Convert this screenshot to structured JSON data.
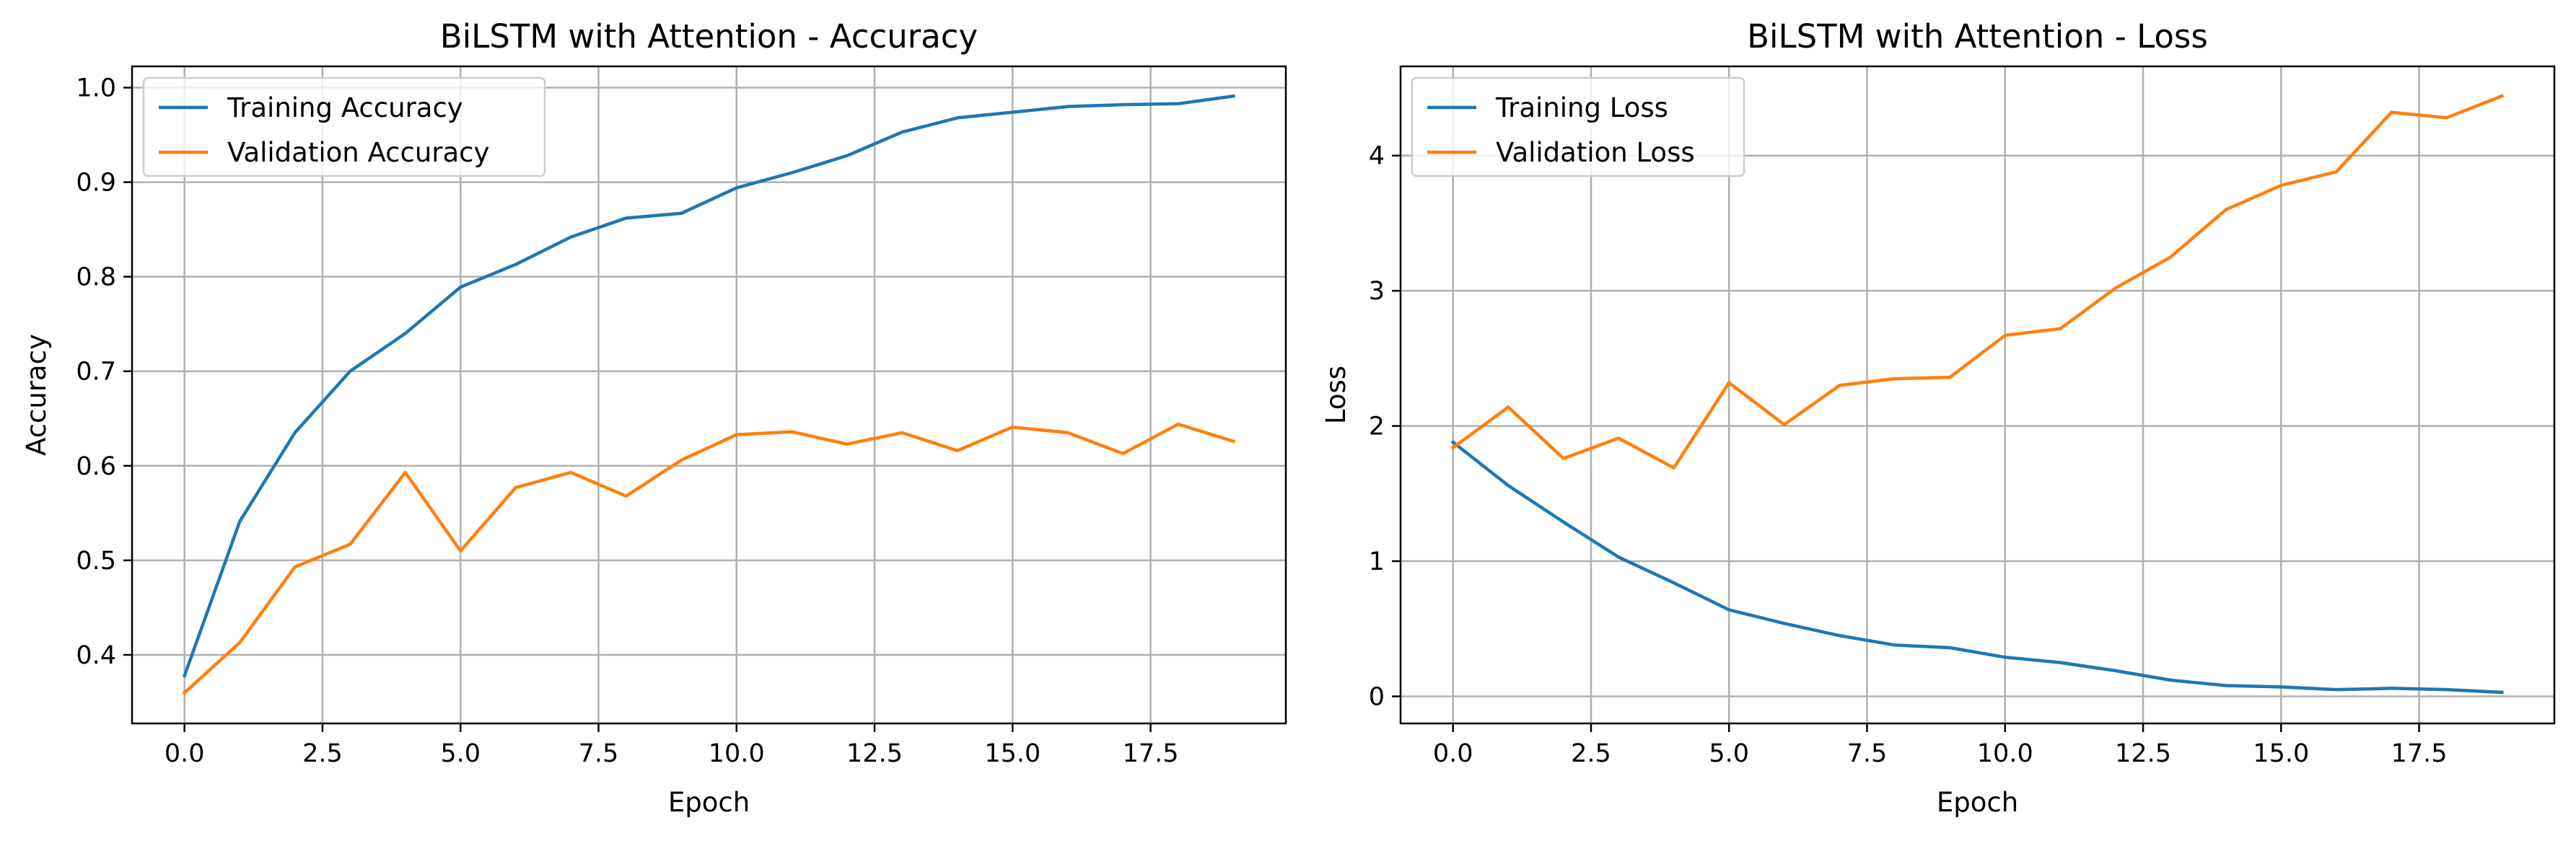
{
  "chart_data": [
    {
      "type": "line",
      "title": "BiLSTM with Attention - Accuracy",
      "xlabel": "Epoch",
      "ylabel": "Accuracy",
      "xlim": [
        -0.95,
        19.95
      ],
      "ylim": [
        0.3275,
        1.0225
      ],
      "xticks": [
        0,
        2.5,
        5,
        7.5,
        10,
        12.5,
        15,
        17.5
      ],
      "xtick_labels": [
        "0.0",
        "2.5",
        "5.0",
        "7.5",
        "10.0",
        "12.5",
        "15.0",
        "17.5"
      ],
      "yticks": [
        0.4,
        0.5,
        0.6,
        0.7,
        0.8,
        0.9,
        1.0
      ],
      "ytick_labels": [
        "0.4",
        "0.5",
        "0.6",
        "0.7",
        "0.8",
        "0.9",
        "1.0"
      ],
      "grid": true,
      "legend_position": "top-left",
      "x": [
        0,
        1,
        2,
        3,
        4,
        5,
        6,
        7,
        8,
        9,
        10,
        11,
        12,
        13,
        14,
        15,
        16,
        17,
        18,
        19
      ],
      "series": [
        {
          "name": "Training Accuracy",
          "color": "#1f77b4",
          "values": [
            0.378,
            0.541,
            0.635,
            0.7,
            0.74,
            0.789,
            0.813,
            0.842,
            0.862,
            0.867,
            0.894,
            0.91,
            0.928,
            0.953,
            0.968,
            0.974,
            0.98,
            0.982,
            0.983,
            0.991
          ]
        },
        {
          "name": "Validation Accuracy",
          "color": "#ff7f0e",
          "values": [
            0.36,
            0.413,
            0.493,
            0.517,
            0.593,
            0.51,
            0.577,
            0.593,
            0.568,
            0.606,
            0.633,
            0.636,
            0.623,
            0.635,
            0.616,
            0.641,
            0.635,
            0.613,
            0.644,
            0.626
          ]
        }
      ]
    },
    {
      "type": "line",
      "title": "BiLSTM with Attention - Loss",
      "xlabel": "Epoch",
      "ylabel": "Loss",
      "xlim": [
        -0.95,
        19.95
      ],
      "ylim": [
        -0.2,
        4.66
      ],
      "xticks": [
        0,
        2.5,
        5,
        7.5,
        10,
        12.5,
        15,
        17.5
      ],
      "xtick_labels": [
        "0.0",
        "2.5",
        "5.0",
        "7.5",
        "10.0",
        "12.5",
        "15.0",
        "17.5"
      ],
      "yticks": [
        0,
        1,
        2,
        3,
        4
      ],
      "ytick_labels": [
        "0",
        "1",
        "2",
        "3",
        "4"
      ],
      "grid": true,
      "legend_position": "top-left",
      "x": [
        0,
        1,
        2,
        3,
        4,
        5,
        6,
        7,
        8,
        9,
        10,
        11,
        12,
        13,
        14,
        15,
        16,
        17,
        18,
        19
      ],
      "series": [
        {
          "name": "Training Loss",
          "color": "#1f77b4",
          "values": [
            1.88,
            1.56,
            1.29,
            1.03,
            0.84,
            0.64,
            0.54,
            0.45,
            0.38,
            0.36,
            0.29,
            0.25,
            0.19,
            0.12,
            0.08,
            0.07,
            0.05,
            0.06,
            0.05,
            0.03
          ]
        },
        {
          "name": "Validation Loss",
          "color": "#ff7f0e",
          "values": [
            1.84,
            2.14,
            1.76,
            1.91,
            1.69,
            2.32,
            2.01,
            2.3,
            2.35,
            2.36,
            2.67,
            2.72,
            3.02,
            3.25,
            3.6,
            3.78,
            3.88,
            4.32,
            4.28,
            4.44
          ]
        }
      ]
    }
  ]
}
